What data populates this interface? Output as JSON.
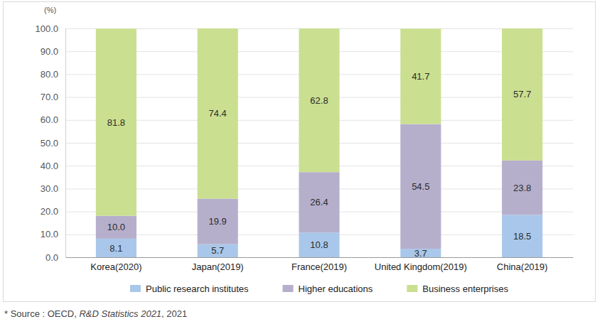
{
  "chart_data": {
    "type": "bar",
    "stacked": true,
    "data_labels": true,
    "grid": true,
    "legend": "bottom",
    "y_label": "(%)",
    "categories": [
      "Korea(2020)",
      "Japan(2019)",
      "France(2019)",
      "United Kingdom(2019)",
      "China(2019)"
    ],
    "series": [
      {
        "name": "Public research institutes",
        "color": "#a9c7ea",
        "values": [
          8.1,
          5.7,
          10.8,
          3.7,
          18.5
        ],
        "value_labels": [
          "8.1",
          "5.7",
          "10.8",
          "3.7",
          "18.5"
        ]
      },
      {
        "name": "Higher educations",
        "color": "#b6afcc",
        "values": [
          10,
          19.9,
          26.4,
          54.5,
          23.8
        ],
        "value_labels": [
          "10.0",
          "19.9",
          "26.4",
          "54.5",
          "23.8"
        ]
      },
      {
        "name": "Business enterprises",
        "color": "#cadf90",
        "values": [
          81.8,
          74.4,
          62.8,
          41.7,
          57.7
        ],
        "value_labels": [
          "81.8",
          "74.4",
          "62.8",
          "41.7",
          "57.7"
        ]
      }
    ],
    "ylim": [
      0,
      100
    ],
    "yticks": [
      {
        "value": 0,
        "label": "0.0"
      },
      {
        "value": 10,
        "label": "10.0"
      },
      {
        "value": 20,
        "label": "20.0"
      },
      {
        "value": 30,
        "label": "30.0"
      },
      {
        "value": 40,
        "label": "40.0"
      },
      {
        "value": 50,
        "label": "50.0"
      },
      {
        "value": 60,
        "label": "60.0"
      },
      {
        "value": 70,
        "label": "70.0"
      },
      {
        "value": 80,
        "label": "80.0"
      },
      {
        "value": 90,
        "label": "90.0"
      },
      {
        "value": 100,
        "label": "100.0"
      }
    ],
    "annotations": [
      "* Source : OECD, ",
      "R&D Statistics 2021",
      ", 2021"
    ]
  }
}
